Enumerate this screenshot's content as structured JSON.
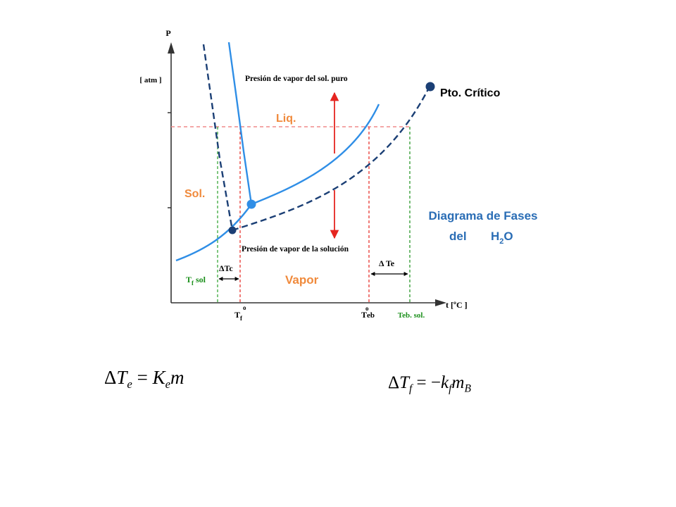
{
  "axes": {
    "y_label": "P",
    "y_unit": "[ atm ]",
    "x_label": "t [ºC ]"
  },
  "labels": {
    "pure_vapor_pressure": "Presión de vapor del sol. puro",
    "solution_vapor_pressure": "Presión de vapor de la solución",
    "critical_point": "Pto. Crítico",
    "liquid": "Liq.",
    "solid": "Sol.",
    "vapor": "Vapor",
    "delta_tc": "ΔTc",
    "delta_te": "Δ Te",
    "tf_sol_main": "T",
    "tf_sol_sub": "f",
    "tf_sol_rest": " sol",
    "title_line1": "Diagrama de Fases",
    "title_line2_a": "del",
    "title_line2_h": "H",
    "title_line2_sub": "2",
    "title_line2_o": "O"
  },
  "ticks": {
    "tf_pure_main": "T",
    "tf_pure_sup": "o",
    "tf_pure_sub": "f",
    "teb_pure_main": "T",
    "teb_pure_sup": "o",
    "teb_pure_sub": "eb",
    "teb_sol": "Teb. sol."
  },
  "equations": {
    "boiling": {
      "delta": "Δ",
      "T": "T",
      "sub_e": "e",
      "eq": " = ",
      "K": "K",
      "sub_k": "e",
      "m": "m"
    },
    "freezing": {
      "delta": "Δ",
      "T": "T",
      "sub_f": "f",
      "eq": " = −",
      "k": "k",
      "sub_k": "f",
      "m": "m",
      "sub_m": "B"
    }
  },
  "colors": {
    "solid_blue": "#2f8ee6",
    "dark_blue": "#1b3f75",
    "red": "#e52520",
    "green": "#1a8f1a",
    "orange": "#f08a3c",
    "title_blue": "#2a6db5"
  }
}
